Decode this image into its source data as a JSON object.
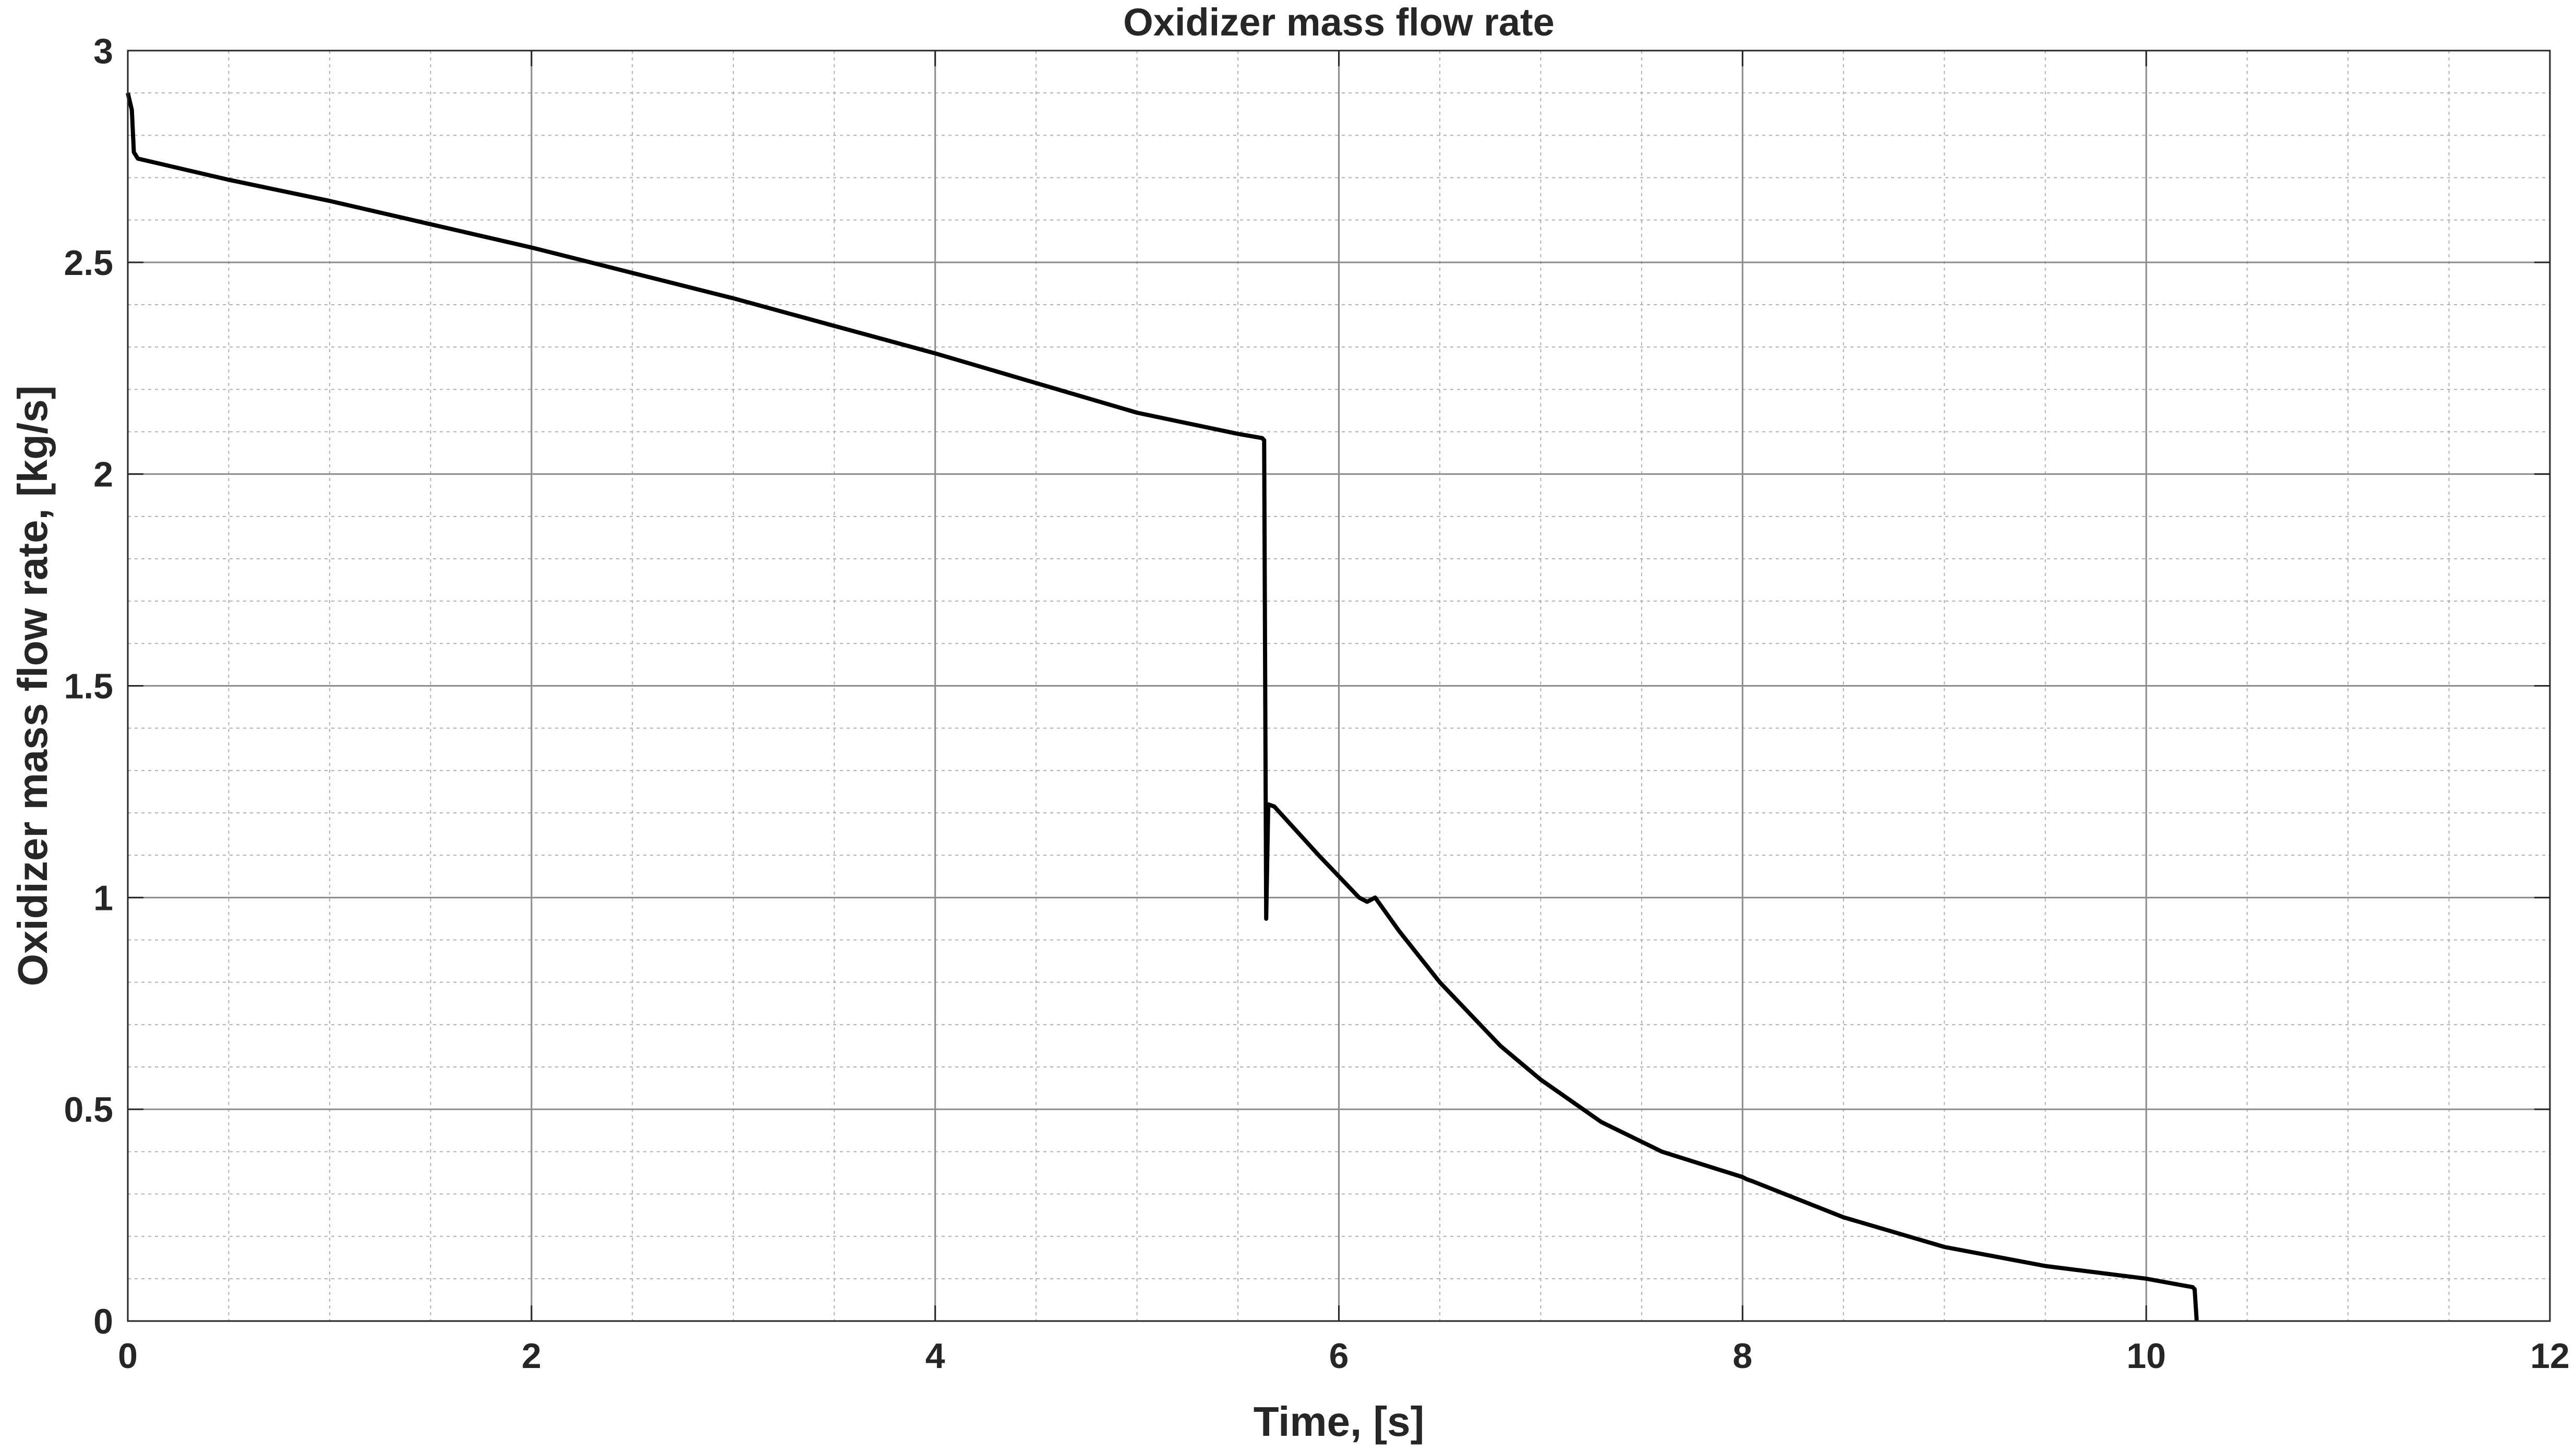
{
  "chart_data": {
    "type": "line",
    "title": "Oxidizer mass flow rate",
    "xlabel": "Time, [s]",
    "ylabel": "Oxidizer mass flow rate, [kg/s]",
    "xlim": [
      0,
      12
    ],
    "ylim": [
      0,
      3
    ],
    "xticks": [
      0,
      2,
      4,
      6,
      8,
      10,
      12
    ],
    "yticks": [
      0,
      0.5,
      1,
      1.5,
      2,
      2.5,
      3
    ],
    "xtick_labels": [
      "0",
      "2",
      "4",
      "6",
      "8",
      "10",
      "12"
    ],
    "ytick_labels": [
      "0",
      "0.5",
      "1",
      "1.5",
      "2",
      "2.5",
      "3"
    ],
    "grid": "major and minor",
    "minor_x_step": 0.5,
    "minor_y_step": 0.1,
    "line_color": "#000000",
    "series": [
      {
        "x": [
          0,
          0.02,
          0.03,
          0.05,
          0.5,
          1.0,
          1.5,
          2.0,
          2.5,
          3.0,
          3.5,
          4.0,
          4.5,
          5.0,
          5.5,
          5.62,
          5.63,
          5.64,
          5.65,
          5.68,
          5.9,
          6.1,
          6.14,
          6.18,
          6.3,
          6.5,
          6.8,
          7.0,
          7.3,
          7.6,
          8.0,
          8.02,
          8.05,
          8.5,
          9.0,
          9.5,
          10.0,
          10.23,
          10.24,
          10.25
        ],
        "y": [
          2.9,
          2.86,
          2.76,
          2.745,
          2.695,
          2.645,
          2.59,
          2.535,
          2.475,
          2.415,
          2.35,
          2.285,
          2.215,
          2.145,
          2.095,
          2.085,
          2.08,
          0.95,
          1.22,
          1.215,
          1.1,
          1.0,
          0.99,
          1.0,
          0.92,
          0.8,
          0.65,
          0.57,
          0.47,
          0.4,
          0.34,
          0.335,
          0.33,
          0.245,
          0.175,
          0.13,
          0.1,
          0.08,
          0.075,
          0.0
        ]
      }
    ]
  }
}
